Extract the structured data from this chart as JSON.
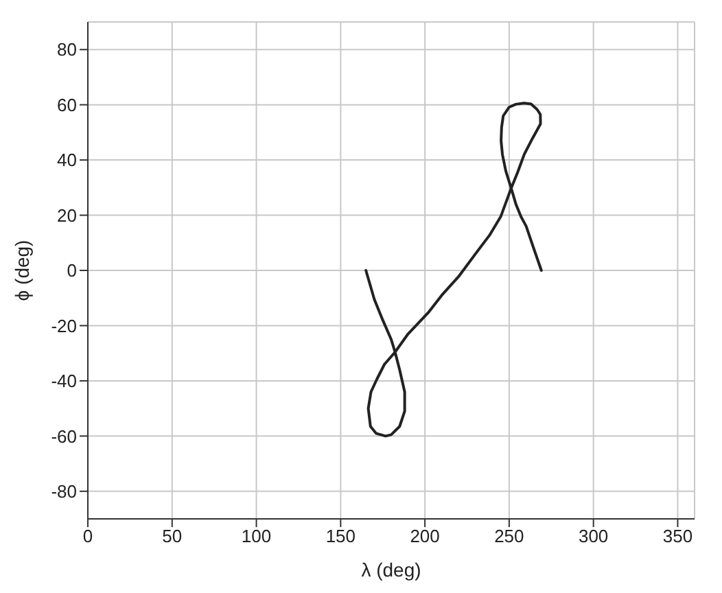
{
  "chart_data": {
    "type": "line",
    "xlabel": "λ (deg)",
    "ylabel": "ϕ (deg)",
    "x": [
      165,
      170,
      175,
      180,
      182.3,
      185,
      188,
      188,
      185,
      180,
      176.7,
      171,
      167.7,
      166.4,
      168,
      171.5,
      176,
      182.3,
      190,
      202.4,
      210,
      220.3,
      230,
      238.3,
      245,
      251.2,
      255,
      258.9,
      264,
      268.6,
      268.5,
      266.6,
      263,
      258.9,
      254,
      249.9,
      246.5,
      245.5,
      245.2,
      246,
      248,
      251.2,
      254,
      257,
      260.1,
      264,
      269.1
    ],
    "series": [
      {
        "color": "#222222",
        "values": [
          0,
          -10.5,
          -18,
          -25,
          -29.6,
          -36,
          -44,
          -51,
          -56.5,
          -59.5,
          -60,
          -59,
          -56.5,
          -50,
          -44,
          -39.4,
          -34,
          -29.6,
          -23,
          -15,
          -9,
          -2,
          6,
          12.7,
          19.5,
          29.8,
          35.5,
          42,
          48,
          53.1,
          56.5,
          58.3,
          60.3,
          60.6,
          60.2,
          59.1,
          56,
          51.8,
          47,
          42,
          36,
          29.8,
          24,
          19.5,
          16,
          9,
          0
        ]
      }
    ],
    "xlim": [
      0,
      360
    ],
    "ylim": [
      -90,
      90
    ],
    "xticks": [
      0,
      50,
      100,
      150,
      200,
      250,
      300,
      350
    ],
    "yticks": [
      -80,
      -60,
      -40,
      -20,
      0,
      20,
      40,
      60,
      80
    ],
    "grid": true,
    "marker": "none",
    "line_style": "solid",
    "legend": false
  }
}
